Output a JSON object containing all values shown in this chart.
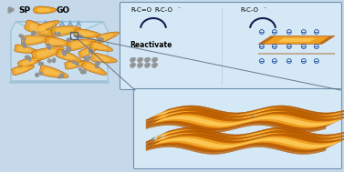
{
  "bg_color": "#c5d9ea",
  "beaker_color": "#d8eaf5",
  "beaker_edge_color": "#90b8d0",
  "beaker_fill": "#cce4f2",
  "go_color_light": "#ffd060",
  "go_color_mid": "#f0a020",
  "go_color_dark": "#c06000",
  "go_color_edge": "#a05000",
  "sp_color": "#909090",
  "sp_dark": "#505050",
  "green_color": "#44cc44",
  "arrow_color": "#7aaccf",
  "panel_bg": "#d5e8f5",
  "panel_border": "#7090b0",
  "minus_color": "#2050a0",
  "curve_arrow_color": "#102050",
  "connector_color": "#506070",
  "legend_sp_text": "SP",
  "legend_go_text": "GO",
  "reactivate_text": "Reactivate"
}
